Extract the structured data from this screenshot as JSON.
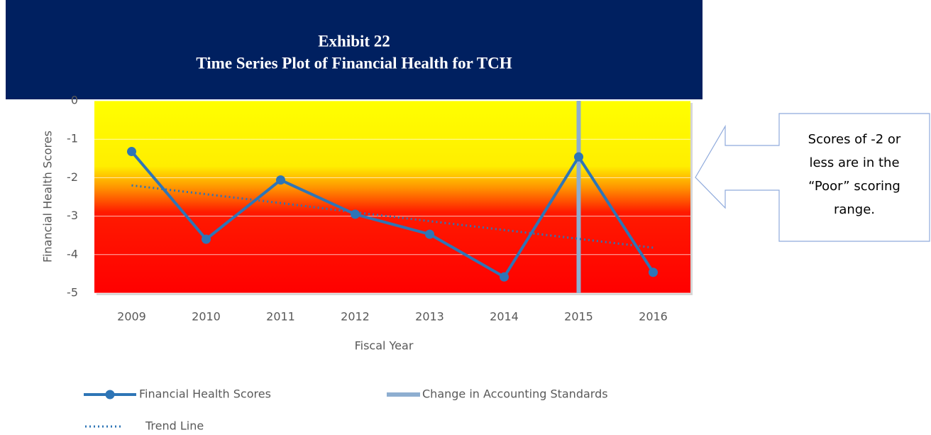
{
  "chart_data": {
    "type": "line",
    "title": "Exhibit 22",
    "subtitle": "Time Series Plot of Financial Health for TCH",
    "x_label": "Fiscal Year",
    "y_label": "Financial Health Scores",
    "categories": [
      "2009",
      "2010",
      "2011",
      "2012",
      "2013",
      "2014",
      "2015",
      "2016"
    ],
    "series": [
      {
        "name": "Financial Health Scores",
        "color": "#2e75b6",
        "values": [
          -1.32,
          -3.6,
          -2.06,
          -2.95,
          -3.47,
          -4.58,
          -1.46,
          -4.46
        ]
      },
      {
        "name": "Trend Line",
        "color": "#2e75b6",
        "style": "dotted",
        "values": [
          -2.2,
          -2.43,
          -2.66,
          -2.9,
          -3.13,
          -3.36,
          -3.59,
          -3.82
        ]
      }
    ],
    "vline": {
      "name": "Change in Accounting Standards",
      "category": "2015",
      "color": "#8eaed0"
    },
    "ylim": [
      -5,
      0
    ],
    "yticks": [
      -5,
      -4,
      -3,
      -2,
      -1,
      0
    ],
    "grid": true,
    "annotation": [
      "Scores of -2 or",
      "less are in the",
      "“Poor” scoring",
      "range."
    ]
  }
}
